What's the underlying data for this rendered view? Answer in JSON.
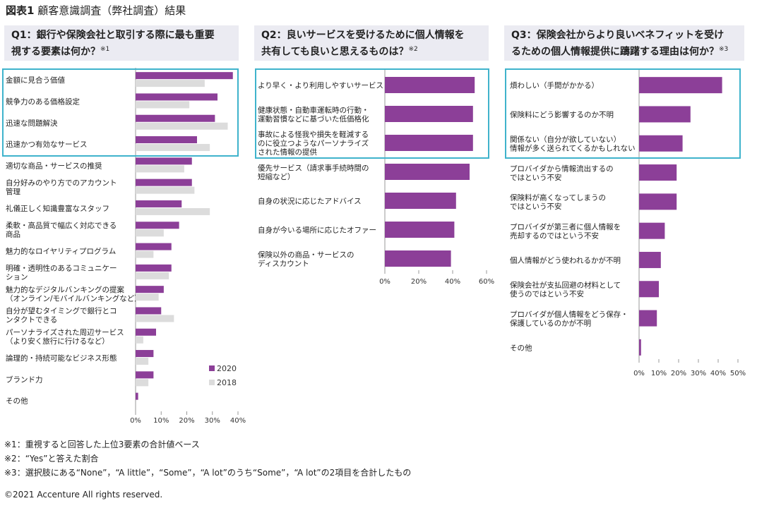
{
  "figure": {
    "label": "図表1",
    "title": "顧客意識調査（弊社調査）結果"
  },
  "colors": {
    "s2020": "#8c3f98",
    "s2018": "#dcdcdc",
    "highlight": "#3fb3cc",
    "head_bg": "#ebebf2"
  },
  "chart_data": [
    {
      "type": "bar",
      "orientation": "horizontal",
      "title": "Q1：銀行や保険会社と取引する際に最も重要視する要素は何か？",
      "title_lines": [
        "Q1：銀行や保険会社と取引する際に最も重要",
        "視する要素は何か？"
      ],
      "note_mark": "※1",
      "categories": [
        [
          "金額に見合う価値"
        ],
        [
          "競争力のある価格設定"
        ],
        [
          "迅速な問題解決"
        ],
        [
          "迅速かつ有効なサービス"
        ],
        [
          "適切な商品・サービスの推奨"
        ],
        [
          "自分好みのやり方でのアカウント",
          "管理"
        ],
        [
          "礼儀正しく知識豊富なスタッフ"
        ],
        [
          "柔軟・高品質で幅広く対応できる",
          "商品"
        ],
        [
          "魅力的なロイヤリティプログラム"
        ],
        [
          "明確・透明性のあるコミュニケー",
          "ション"
        ],
        [
          "魅力的なデジタルバンキングの提案",
          "（オンライン/モバイルバンキングなど）"
        ],
        [
          "自分が望むタイミングで銀行とコ",
          "ンタクトできる"
        ],
        [
          "パーソナライズされた周辺サービス",
          "（より安く旅行に行けるなど）"
        ],
        [
          "論理的・持続可能なビジネス形態"
        ],
        [
          "ブランド力"
        ],
        [
          "その他"
        ]
      ],
      "series": [
        {
          "name": "2020",
          "values": [
            38,
            32,
            31,
            24,
            22,
            22,
            18,
            17,
            14,
            14,
            11,
            10,
            8,
            7,
            7,
            1
          ]
        },
        {
          "name": "2018",
          "values": [
            27,
            21,
            36,
            29,
            19,
            23,
            29,
            11,
            7,
            13,
            9,
            15,
            3,
            5,
            5,
            0
          ]
        }
      ],
      "x_ticks": [
        "0%",
        "10%",
        "20%",
        "30%",
        "40%"
      ],
      "xlim": [
        0,
        40
      ],
      "highlight_top": 4,
      "legend": {
        "placement": "bottom-right",
        "entries": [
          "2020",
          "2018"
        ]
      }
    },
    {
      "type": "bar",
      "orientation": "horizontal",
      "title": "Q2：良いサービスを受けるために個人情報を共有しても良いと思えるものは？",
      "title_lines": [
        "Q2：良いサービスを受けるために個人情報を",
        "共有しても良いと思えるものは？"
      ],
      "note_mark": "※2",
      "categories": [
        [
          "より早く・より利用しやすいサービス"
        ],
        [
          "健康状態・自動車運転時の行動・",
          "運動習慣などに基づいた低価格化"
        ],
        [
          "事故による怪我や損失を軽減する",
          "のに役立つようなパーソナライズ",
          "された情報の提供"
        ],
        [
          "優先サービス（請求事手続時間の",
          "短縮など）"
        ],
        [
          "自身の状況に応じたアドバイス"
        ],
        [
          "自身が今いる場所に応じたオファー"
        ],
        [
          "保険以外の商品・サービスの",
          "ディスカウント"
        ]
      ],
      "series": [
        {
          "name": "2020",
          "values": [
            53,
            52,
            52,
            50,
            42,
            41,
            39
          ]
        }
      ],
      "x_ticks": [
        "0%",
        "20%",
        "40%",
        "60%"
      ],
      "xlim": [
        0,
        60
      ],
      "highlight_top": 3
    },
    {
      "type": "bar",
      "orientation": "horizontal",
      "title": "Q3：保険会社からより良いベネフィットを受けるための個人情報提供に躊躇する理由は何か？",
      "title_lines": [
        "Q3：保険会社からより良いベネフィットを受け",
        "るための個人情報提供に躊躇する理由は何か？"
      ],
      "note_mark": "※3",
      "categories": [
        [
          "煩わしい（手間がかかる）"
        ],
        [
          "保険料にどう影響するのか不明"
        ],
        [
          "関係ない（自分が欲していない）",
          "情報が多く送られてくるかもしれない"
        ],
        [
          "プロバイダから情報流出するの",
          "ではという不安"
        ],
        [
          "保険料が高くなってしまうの",
          "ではという不安"
        ],
        [
          "プロバイダが第三者に個人情報を",
          "売却するのではという不安"
        ],
        [
          "個人情報がどう使われるかが不明"
        ],
        [
          "保険会社が支払回避の材料として",
          "使うのではという不安"
        ],
        [
          "プロバイダが個人情報をどう保存・",
          "保護しているのかが不明"
        ],
        [
          "その他"
        ]
      ],
      "series": [
        {
          "name": "2020",
          "values": [
            42,
            26,
            22,
            19,
            19,
            13,
            11,
            10,
            9,
            1
          ]
        }
      ],
      "x_ticks": [
        "0%",
        "10%",
        "20%",
        "30%",
        "40%",
        "50%"
      ],
      "xlim": [
        0,
        50
      ],
      "highlight_top": 3
    }
  ],
  "notes": [
    "※1：重視すると回答した上位3要素の合計値ベース",
    "※2：“Yes”と答えた割合",
    "※3：選択肢にある“None”，“A little”，“Some”，“A lot”のうち“Some”，“A lot”の2項目を合計したもの"
  ],
  "copyright": "©2021 Accenture All rights reserved."
}
